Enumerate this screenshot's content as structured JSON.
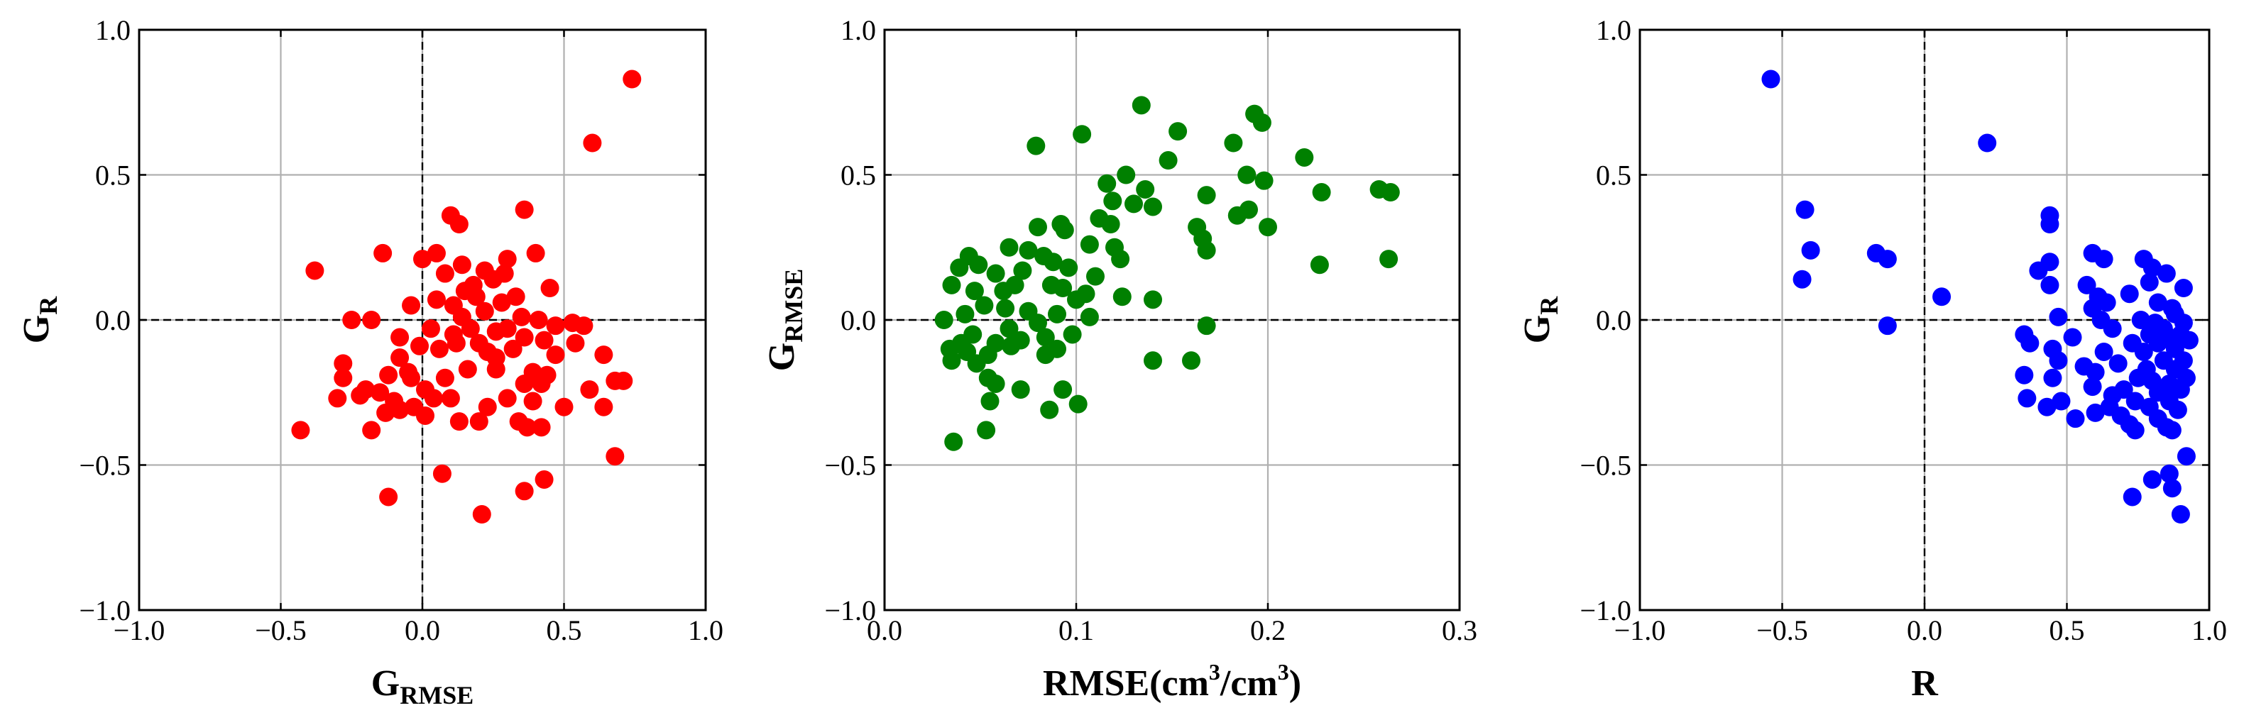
{
  "chart_data": [
    {
      "type": "scatter",
      "xlabel": {
        "main": "G",
        "sub": "RMSE",
        "sup": "",
        "tail": ""
      },
      "ylabel": {
        "main": "G",
        "sub": "R",
        "sup": "",
        "tail": ""
      },
      "xlim": [
        -1.0,
        1.0
      ],
      "ylim": [
        -1.0,
        1.0
      ],
      "xticks": [
        -1.0,
        -0.5,
        0.0,
        0.5,
        1.0
      ],
      "yticks": [
        -1.0,
        -0.5,
        0.0,
        0.5,
        1.0
      ],
      "xtick_labels": [
        "−1.0",
        "−0.5",
        "0.0",
        "0.5",
        "1.0"
      ],
      "ytick_labels": [
        "−1.0",
        "−0.5",
        "0.0",
        "0.5",
        "1.0"
      ],
      "grid": true,
      "zero_lines": {
        "x": 0.0,
        "y": 0.0
      },
      "color": "#ff0000",
      "points": [
        [
          0.74,
          0.83
        ],
        [
          0.6,
          0.61
        ],
        [
          0.36,
          0.38
        ],
        [
          0.1,
          0.36
        ],
        [
          0.13,
          0.33
        ],
        [
          0.4,
          0.23
        ],
        [
          0.3,
          0.21
        ],
        [
          0.05,
          0.23
        ],
        [
          0.0,
          0.21
        ],
        [
          -0.14,
          0.23
        ],
        [
          -0.38,
          0.17
        ],
        [
          0.14,
          0.19
        ],
        [
          0.22,
          0.17
        ],
        [
          0.25,
          0.14
        ],
        [
          0.08,
          0.16
        ],
        [
          0.45,
          0.11
        ],
        [
          0.15,
          0.1
        ],
        [
          0.33,
          0.08
        ],
        [
          0.19,
          0.08
        ],
        [
          0.11,
          0.05
        ],
        [
          0.28,
          0.06
        ],
        [
          -0.04,
          0.05
        ],
        [
          0.05,
          0.07
        ],
        [
          0.22,
          0.03
        ],
        [
          0.14,
          0.01
        ],
        [
          -0.25,
          0.0
        ],
        [
          -0.18,
          0.0
        ],
        [
          0.35,
          0.01
        ],
        [
          0.41,
          0.0
        ],
        [
          0.47,
          -0.02
        ],
        [
          0.53,
          -0.01
        ],
        [
          0.57,
          -0.02
        ],
        [
          0.03,
          -0.03
        ],
        [
          0.17,
          -0.03
        ],
        [
          0.26,
          -0.04
        ],
        [
          -0.08,
          -0.06
        ],
        [
          0.11,
          -0.05
        ],
        [
          0.2,
          -0.08
        ],
        [
          0.36,
          -0.06
        ],
        [
          0.43,
          -0.07
        ],
        [
          0.54,
          -0.08
        ],
        [
          0.06,
          -0.1
        ],
        [
          0.23,
          -0.11
        ],
        [
          0.32,
          -0.1
        ],
        [
          0.64,
          -0.12
        ],
        [
          -0.01,
          -0.09
        ],
        [
          -0.08,
          -0.13
        ],
        [
          -0.28,
          -0.15
        ],
        [
          -0.28,
          -0.2
        ],
        [
          -0.12,
          -0.19
        ],
        [
          -0.05,
          -0.18
        ],
        [
          0.16,
          -0.17
        ],
        [
          0.26,
          -0.17
        ],
        [
          0.39,
          -0.18
        ],
        [
          0.44,
          -0.19
        ],
        [
          -0.2,
          -0.24
        ],
        [
          -0.04,
          -0.2
        ],
        [
          0.08,
          -0.2
        ],
        [
          0.36,
          -0.22
        ],
        [
          0.42,
          -0.22
        ],
        [
          0.68,
          -0.21
        ],
        [
          0.71,
          -0.21
        ],
        [
          -0.3,
          -0.27
        ],
        [
          -0.15,
          -0.25
        ],
        [
          0.01,
          -0.24
        ],
        [
          0.59,
          -0.24
        ],
        [
          -0.1,
          -0.28
        ],
        [
          0.3,
          -0.27
        ],
        [
          0.39,
          -0.28
        ],
        [
          -0.08,
          -0.31
        ],
        [
          0.04,
          -0.27
        ],
        [
          0.23,
          -0.3
        ],
        [
          0.5,
          -0.3
        ],
        [
          0.64,
          -0.3
        ],
        [
          -0.18,
          -0.38
        ],
        [
          -0.13,
          -0.32
        ],
        [
          0.13,
          -0.35
        ],
        [
          0.2,
          -0.35
        ],
        [
          0.34,
          -0.35
        ],
        [
          -0.03,
          -0.3
        ],
        [
          0.37,
          -0.37
        ],
        [
          0.42,
          -0.37
        ],
        [
          0.68,
          -0.47
        ],
        [
          -0.43,
          -0.38
        ],
        [
          0.07,
          -0.53
        ],
        [
          0.43,
          -0.55
        ],
        [
          0.36,
          -0.59
        ],
        [
          -0.12,
          -0.61
        ],
        [
          0.21,
          -0.67
        ],
        [
          0.1,
          -0.27
        ],
        [
          0.01,
          -0.33
        ],
        [
          0.26,
          -0.13
        ],
        [
          0.47,
          -0.12
        ],
        [
          0.12,
          -0.08
        ],
        [
          0.3,
          -0.03
        ],
        [
          0.18,
          0.12
        ],
        [
          0.29,
          0.16
        ],
        [
          -0.22,
          -0.26
        ]
      ]
    },
    {
      "type": "scatter",
      "xlabel": {
        "main": "RMSE(cm",
        "sub": "",
        "sup": "3",
        "tail": "/cm",
        "sup2": "3",
        "tail2": ")"
      },
      "ylabel": {
        "main": "G",
        "sub": "RMSE",
        "sup": "",
        "tail": ""
      },
      "xlim": [
        0.0,
        0.3
      ],
      "ylim": [
        -1.0,
        1.0
      ],
      "xticks": [
        0.0,
        0.1,
        0.2,
        0.3
      ],
      "yticks": [
        -1.0,
        -0.5,
        0.0,
        0.5,
        1.0
      ],
      "xtick_labels": [
        "0.0",
        "0.1",
        "0.2",
        "0.3"
      ],
      "ytick_labels": [
        "−1.0",
        "−0.5",
        "0.0",
        "0.5",
        "1.0"
      ],
      "grid": true,
      "zero_lines": {
        "x": null,
        "y": 0.0
      },
      "color": "#008000",
      "points": [
        [
          0.134,
          0.74
        ],
        [
          0.193,
          0.71
        ],
        [
          0.197,
          0.68
        ],
        [
          0.153,
          0.65
        ],
        [
          0.103,
          0.64
        ],
        [
          0.079,
          0.6
        ],
        [
          0.182,
          0.61
        ],
        [
          0.219,
          0.56
        ],
        [
          0.148,
          0.55
        ],
        [
          0.126,
          0.5
        ],
        [
          0.189,
          0.5
        ],
        [
          0.198,
          0.48
        ],
        [
          0.116,
          0.47
        ],
        [
          0.136,
          0.45
        ],
        [
          0.258,
          0.45
        ],
        [
          0.264,
          0.44
        ],
        [
          0.228,
          0.44
        ],
        [
          0.168,
          0.43
        ],
        [
          0.119,
          0.41
        ],
        [
          0.13,
          0.4
        ],
        [
          0.14,
          0.39
        ],
        [
          0.19,
          0.38
        ],
        [
          0.184,
          0.36
        ],
        [
          0.112,
          0.35
        ],
        [
          0.118,
          0.33
        ],
        [
          0.2,
          0.32
        ],
        [
          0.163,
          0.32
        ],
        [
          0.092,
          0.33
        ],
        [
          0.08,
          0.32
        ],
        [
          0.094,
          0.31
        ],
        [
          0.166,
          0.28
        ],
        [
          0.107,
          0.26
        ],
        [
          0.12,
          0.25
        ],
        [
          0.065,
          0.25
        ],
        [
          0.075,
          0.24
        ],
        [
          0.168,
          0.24
        ],
        [
          0.083,
          0.22
        ],
        [
          0.044,
          0.22
        ],
        [
          0.088,
          0.2
        ],
        [
          0.123,
          0.21
        ],
        [
          0.049,
          0.19
        ],
        [
          0.227,
          0.19
        ],
        [
          0.039,
          0.18
        ],
        [
          0.096,
          0.18
        ],
        [
          0.072,
          0.17
        ],
        [
          0.058,
          0.16
        ],
        [
          0.11,
          0.15
        ],
        [
          0.035,
          0.12
        ],
        [
          0.068,
          0.12
        ],
        [
          0.087,
          0.12
        ],
        [
          0.263,
          0.21
        ],
        [
          0.047,
          0.1
        ],
        [
          0.093,
          0.11
        ],
        [
          0.124,
          0.08
        ],
        [
          0.1,
          0.07
        ],
        [
          0.14,
          0.07
        ],
        [
          0.052,
          0.05
        ],
        [
          0.063,
          0.04
        ],
        [
          0.075,
          0.03
        ],
        [
          0.09,
          0.02
        ],
        [
          0.042,
          0.02
        ],
        [
          0.107,
          0.01
        ],
        [
          0.031,
          0.0
        ],
        [
          0.08,
          -0.01
        ],
        [
          0.065,
          -0.03
        ],
        [
          0.046,
          -0.05
        ],
        [
          0.168,
          -0.02
        ],
        [
          0.098,
          -0.05
        ],
        [
          0.084,
          -0.06
        ],
        [
          0.04,
          -0.08
        ],
        [
          0.058,
          -0.08
        ],
        [
          0.066,
          -0.09
        ],
        [
          0.034,
          -0.1
        ],
        [
          0.09,
          -0.1
        ],
        [
          0.043,
          -0.11
        ],
        [
          0.054,
          -0.12
        ],
        [
          0.084,
          -0.12
        ],
        [
          0.035,
          -0.14
        ],
        [
          0.14,
          -0.14
        ],
        [
          0.16,
          -0.14
        ],
        [
          0.054,
          -0.2
        ],
        [
          0.058,
          -0.22
        ],
        [
          0.093,
          -0.24
        ],
        [
          0.071,
          -0.24
        ],
        [
          0.055,
          -0.28
        ],
        [
          0.086,
          -0.31
        ],
        [
          0.101,
          -0.29
        ],
        [
          0.053,
          -0.38
        ],
        [
          0.036,
          -0.42
        ],
        [
          0.048,
          -0.15
        ],
        [
          0.062,
          0.1
        ],
        [
          0.105,
          0.09
        ],
        [
          0.071,
          -0.07
        ]
      ]
    },
    {
      "type": "scatter",
      "xlabel": {
        "main": "R",
        "sub": "",
        "sup": "",
        "tail": ""
      },
      "ylabel": {
        "main": "G",
        "sub": "R",
        "sup": "",
        "tail": ""
      },
      "xlim": [
        -1.0,
        1.0
      ],
      "ylim": [
        -1.0,
        1.0
      ],
      "xticks": [
        -1.0,
        -0.5,
        0.0,
        0.5,
        1.0
      ],
      "yticks": [
        -1.0,
        -0.5,
        0.0,
        0.5,
        1.0
      ],
      "xtick_labels": [
        "−1.0",
        "−0.5",
        "0.0",
        "0.5",
        "1.0"
      ],
      "ytick_labels": [
        "−1.0",
        "−0.5",
        "0.0",
        "0.5",
        "1.0"
      ],
      "grid": true,
      "zero_lines": {
        "x": 0.0,
        "y": 0.0
      },
      "color": "#0000ff",
      "points": [
        [
          -0.54,
          0.83
        ],
        [
          0.22,
          0.61
        ],
        [
          -0.42,
          0.38
        ],
        [
          -0.4,
          0.24
        ],
        [
          -0.17,
          0.23
        ],
        [
          -0.13,
          0.21
        ],
        [
          -0.43,
          0.14
        ],
        [
          0.06,
          0.08
        ],
        [
          -0.13,
          -0.02
        ],
        [
          0.44,
          0.36
        ],
        [
          0.44,
          0.33
        ],
        [
          0.59,
          0.23
        ],
        [
          0.63,
          0.21
        ],
        [
          0.77,
          0.21
        ],
        [
          0.8,
          0.18
        ],
        [
          0.85,
          0.16
        ],
        [
          0.4,
          0.17
        ],
        [
          0.44,
          0.2
        ],
        [
          0.57,
          0.12
        ],
        [
          0.79,
          0.13
        ],
        [
          0.91,
          0.11
        ],
        [
          0.44,
          0.12
        ],
        [
          0.61,
          0.08
        ],
        [
          0.72,
          0.09
        ],
        [
          0.82,
          0.06
        ],
        [
          0.87,
          0.04
        ],
        [
          0.59,
          0.04
        ],
        [
          0.64,
          0.06
        ],
        [
          0.47,
          0.01
        ],
        [
          0.88,
          0.02
        ],
        [
          0.76,
          0.0
        ],
        [
          0.81,
          -0.01
        ],
        [
          0.91,
          -0.01
        ],
        [
          0.66,
          -0.03
        ],
        [
          0.84,
          -0.03
        ],
        [
          0.35,
          -0.05
        ],
        [
          0.79,
          -0.05
        ],
        [
          0.86,
          -0.06
        ],
        [
          0.9,
          -0.05
        ],
        [
          0.37,
          -0.08
        ],
        [
          0.73,
          -0.08
        ],
        [
          0.82,
          -0.08
        ],
        [
          0.93,
          -0.07
        ],
        [
          0.45,
          -0.1
        ],
        [
          0.88,
          -0.1
        ],
        [
          0.63,
          -0.11
        ],
        [
          0.77,
          -0.11
        ],
        [
          0.47,
          -0.14
        ],
        [
          0.84,
          -0.14
        ],
        [
          0.91,
          -0.14
        ],
        [
          0.56,
          -0.16
        ],
        [
          0.6,
          -0.18
        ],
        [
          0.88,
          -0.17
        ],
        [
          0.35,
          -0.19
        ],
        [
          0.45,
          -0.2
        ],
        [
          0.75,
          -0.2
        ],
        [
          0.92,
          -0.2
        ],
        [
          0.8,
          -0.21
        ],
        [
          0.86,
          -0.22
        ],
        [
          0.59,
          -0.23
        ],
        [
          0.7,
          -0.24
        ],
        [
          0.66,
          -0.26
        ],
        [
          0.82,
          -0.25
        ],
        [
          0.9,
          -0.24
        ],
        [
          0.36,
          -0.27
        ],
        [
          0.48,
          -0.28
        ],
        [
          0.74,
          -0.28
        ],
        [
          0.86,
          -0.28
        ],
        [
          0.43,
          -0.3
        ],
        [
          0.65,
          -0.3
        ],
        [
          0.79,
          -0.3
        ],
        [
          0.89,
          -0.31
        ],
        [
          0.6,
          -0.32
        ],
        [
          0.53,
          -0.34
        ],
        [
          0.69,
          -0.33
        ],
        [
          0.82,
          -0.34
        ],
        [
          0.72,
          -0.36
        ],
        [
          0.85,
          -0.37
        ],
        [
          0.74,
          -0.38
        ],
        [
          0.87,
          -0.38
        ],
        [
          0.92,
          -0.47
        ],
        [
          0.86,
          -0.53
        ],
        [
          0.8,
          -0.55
        ],
        [
          0.87,
          -0.58
        ],
        [
          0.73,
          -0.61
        ],
        [
          0.9,
          -0.67
        ],
        [
          0.52,
          -0.06
        ],
        [
          0.68,
          -0.15
        ],
        [
          0.78,
          -0.17
        ],
        [
          0.62,
          0.0
        ]
      ]
    }
  ]
}
